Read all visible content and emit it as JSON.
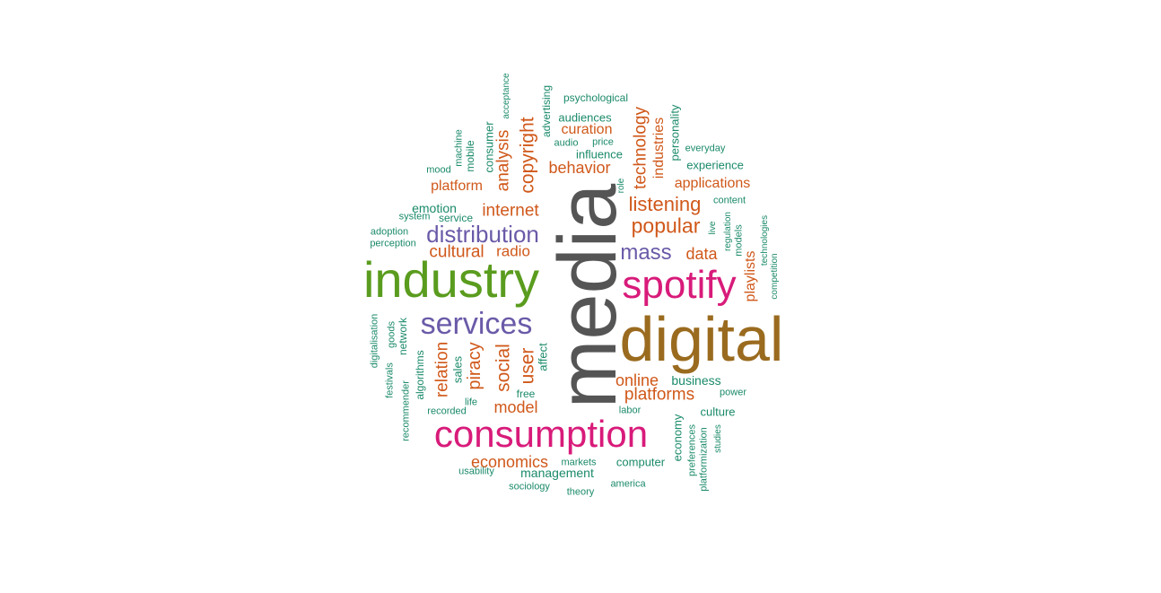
{
  "colors": {
    "gray": "#555555",
    "brown": "#9a6b1f",
    "magenta": "#d81b7a",
    "green": "#5a9c1e",
    "purple": "#6a5aa8",
    "orange": "#d0581a",
    "teal": "#1b8a6a"
  },
  "words": [
    {
      "id": "media",
      "text": "media",
      "color": "gray"
    },
    {
      "id": "digital",
      "text": "digital",
      "color": "brown"
    },
    {
      "id": "industry",
      "text": "industry",
      "color": "green"
    },
    {
      "id": "spotify",
      "text": "spotify",
      "color": "magenta"
    },
    {
      "id": "consumption",
      "text": "consumption",
      "color": "magenta"
    },
    {
      "id": "services",
      "text": "services",
      "color": "purple"
    },
    {
      "id": "distribution",
      "text": "distribution",
      "color": "purple"
    },
    {
      "id": "mass",
      "text": "mass",
      "color": "purple"
    },
    {
      "id": "popular",
      "text": "popular",
      "color": "orange"
    },
    {
      "id": "listening",
      "text": "listening",
      "color": "orange"
    },
    {
      "id": "internet",
      "text": "internet",
      "color": "orange"
    },
    {
      "id": "cultural",
      "text": "cultural",
      "color": "orange"
    },
    {
      "id": "radio",
      "text": "radio",
      "color": "orange"
    },
    {
      "id": "data",
      "text": "data",
      "color": "orange"
    },
    {
      "id": "behavior",
      "text": "behavior",
      "color": "orange"
    },
    {
      "id": "platform",
      "text": "platform",
      "color": "orange"
    },
    {
      "id": "applications",
      "text": "applications",
      "color": "orange"
    },
    {
      "id": "curation",
      "text": "curation",
      "color": "orange"
    },
    {
      "id": "online",
      "text": "online",
      "color": "orange"
    },
    {
      "id": "platforms",
      "text": "platforms",
      "color": "orange"
    },
    {
      "id": "model",
      "text": "model",
      "color": "orange"
    },
    {
      "id": "economics",
      "text": "economics",
      "color": "orange"
    },
    {
      "id": "copyright",
      "text": "copyright",
      "color": "orange"
    },
    {
      "id": "analysis",
      "text": "analysis",
      "color": "orange"
    },
    {
      "id": "technology",
      "text": "technology",
      "color": "orange"
    },
    {
      "id": "industries",
      "text": "industries",
      "color": "orange"
    },
    {
      "id": "playlists",
      "text": "playlists",
      "color": "orange"
    },
    {
      "id": "social",
      "text": "social",
      "color": "orange"
    },
    {
      "id": "user",
      "text": "user",
      "color": "orange"
    },
    {
      "id": "piracy",
      "text": "piracy",
      "color": "orange"
    },
    {
      "id": "relation",
      "text": "relation",
      "color": "orange"
    },
    {
      "id": "emotion",
      "text": "emotion",
      "color": "teal"
    },
    {
      "id": "service",
      "text": "service",
      "color": "teal"
    },
    {
      "id": "system",
      "text": "system",
      "color": "teal"
    },
    {
      "id": "adoption",
      "text": "adoption",
      "color": "teal"
    },
    {
      "id": "perception",
      "text": "perception",
      "color": "teal"
    },
    {
      "id": "mood",
      "text": "mood",
      "color": "teal"
    },
    {
      "id": "machine",
      "text": "machine",
      "color": "teal"
    },
    {
      "id": "mobile",
      "text": "mobile",
      "color": "teal"
    },
    {
      "id": "consumer",
      "text": "consumer",
      "color": "teal"
    },
    {
      "id": "acceptance",
      "text": "acceptance",
      "color": "teal"
    },
    {
      "id": "advertising",
      "text": "advertising",
      "color": "teal"
    },
    {
      "id": "psychological",
      "text": "psychological",
      "color": "teal"
    },
    {
      "id": "audiences",
      "text": "audiences",
      "color": "teal"
    },
    {
      "id": "audio",
      "text": "audio",
      "color": "teal"
    },
    {
      "id": "price",
      "text": "price",
      "color": "teal"
    },
    {
      "id": "influence",
      "text": "influence",
      "color": "teal"
    },
    {
      "id": "personality",
      "text": "personality",
      "color": "teal"
    },
    {
      "id": "everyday",
      "text": "everyday",
      "color": "teal"
    },
    {
      "id": "experience",
      "text": "experience",
      "color": "teal"
    },
    {
      "id": "role",
      "text": "role",
      "color": "teal"
    },
    {
      "id": "content",
      "text": "content",
      "color": "teal"
    },
    {
      "id": "live",
      "text": "live",
      "color": "teal"
    },
    {
      "id": "regulation",
      "text": "regulation",
      "color": "teal"
    },
    {
      "id": "models",
      "text": "models",
      "color": "teal"
    },
    {
      "id": "technologies",
      "text": "technologies",
      "color": "teal"
    },
    {
      "id": "competition",
      "text": "competition",
      "color": "teal"
    },
    {
      "id": "business",
      "text": "business",
      "color": "teal"
    },
    {
      "id": "power",
      "text": "power",
      "color": "teal"
    },
    {
      "id": "culture",
      "text": "culture",
      "color": "teal"
    },
    {
      "id": "labor",
      "text": "labor",
      "color": "teal"
    },
    {
      "id": "economy",
      "text": "economy",
      "color": "teal"
    },
    {
      "id": "preferences",
      "text": "preferences",
      "color": "teal"
    },
    {
      "id": "platformization",
      "text": "platformization",
      "color": "teal"
    },
    {
      "id": "studies",
      "text": "studies",
      "color": "teal"
    },
    {
      "id": "computer",
      "text": "computer",
      "color": "teal"
    },
    {
      "id": "america",
      "text": "america",
      "color": "teal"
    },
    {
      "id": "theory",
      "text": "theory",
      "color": "teal"
    },
    {
      "id": "sociology",
      "text": "sociology",
      "color": "teal"
    },
    {
      "id": "markets",
      "text": "markets",
      "color": "teal"
    },
    {
      "id": "management",
      "text": "management",
      "color": "teal"
    },
    {
      "id": "usability",
      "text": "usability",
      "color": "teal"
    },
    {
      "id": "recorded",
      "text": "recorded",
      "color": "teal"
    },
    {
      "id": "life",
      "text": "life",
      "color": "teal"
    },
    {
      "id": "free",
      "text": "free",
      "color": "teal"
    },
    {
      "id": "affect",
      "text": "affect",
      "color": "teal"
    },
    {
      "id": "sales",
      "text": "sales",
      "color": "teal"
    },
    {
      "id": "algorithms",
      "text": "algorithms",
      "color": "teal"
    },
    {
      "id": "network",
      "text": "network",
      "color": "teal"
    },
    {
      "id": "goods",
      "text": "goods",
      "color": "teal"
    },
    {
      "id": "festivals",
      "text": "festivals",
      "color": "teal"
    },
    {
      "id": "digitalisation",
      "text": "digitalisation",
      "color": "teal"
    },
    {
      "id": "recommender",
      "text": "recommender",
      "color": "teal"
    }
  ]
}
